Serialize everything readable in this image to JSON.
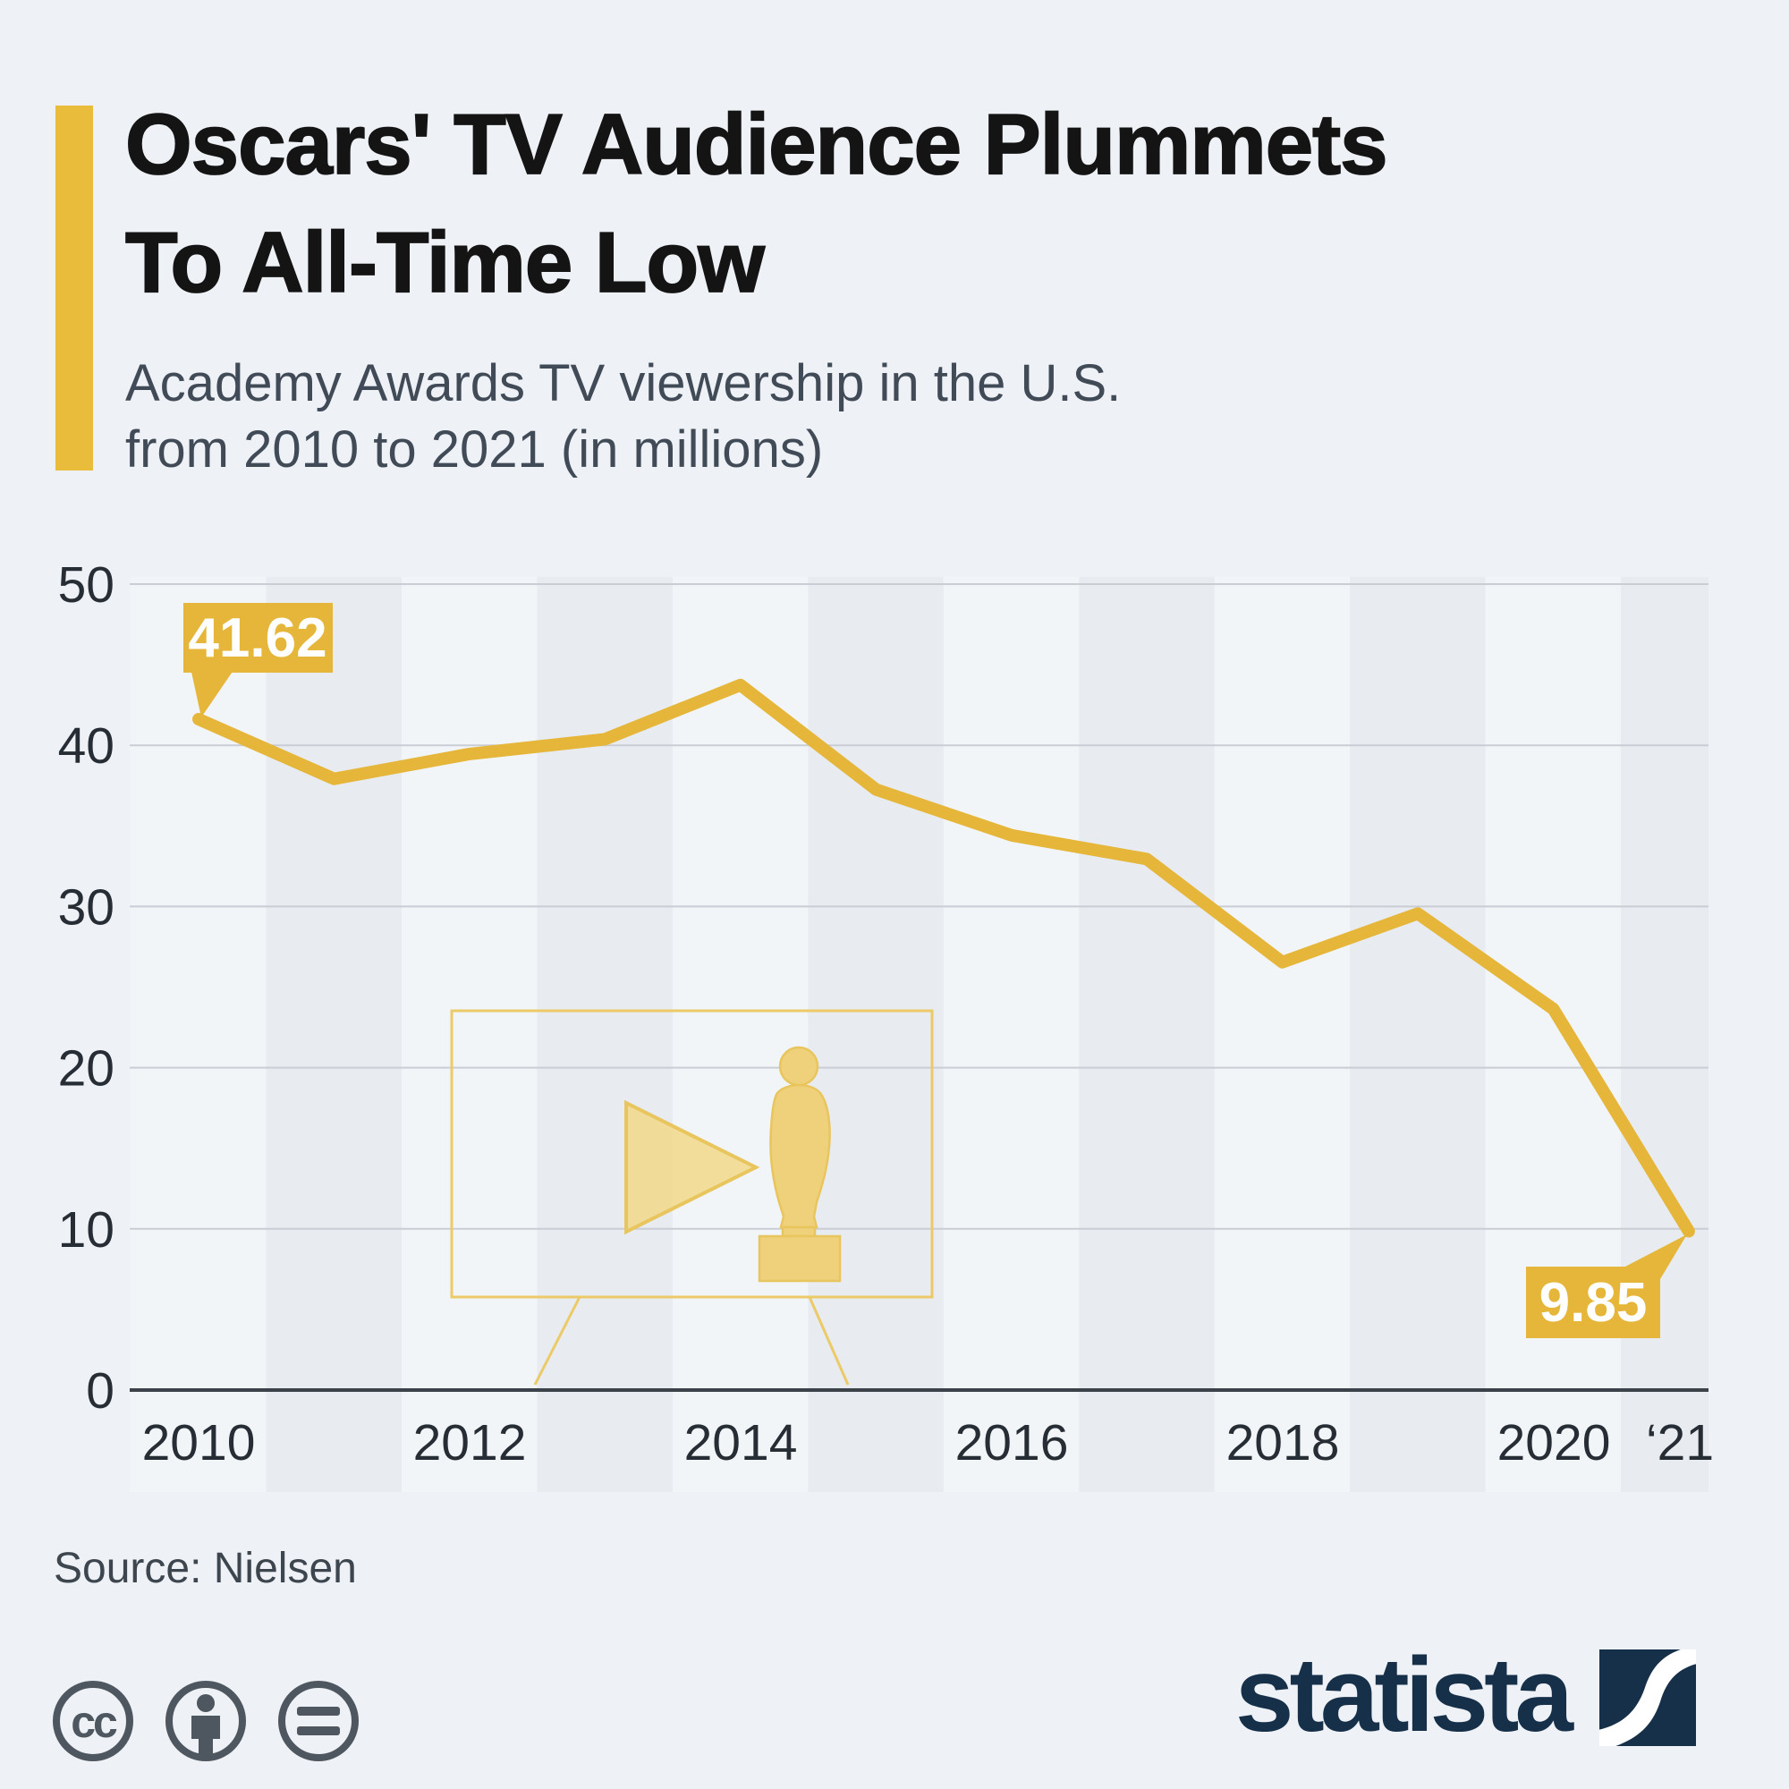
{
  "header": {
    "title_line1": "Oscars' TV Audience Plummets",
    "title_line2": "To All-Time Low",
    "subtitle_line1": "Academy Awards TV viewership in the U.S.",
    "subtitle_line2": "from 2010 to 2021 (in millions)"
  },
  "chart_data": {
    "type": "line",
    "title": "Academy Awards TV viewership in the U.S. from 2010 to 2021 (in millions)",
    "categories": [
      "2010",
      "2011",
      "2012",
      "2013",
      "2014",
      "2015",
      "2016",
      "2017",
      "2018",
      "2019",
      "2020",
      "2021"
    ],
    "values": [
      41.62,
      37.92,
      39.46,
      40.38,
      43.74,
      37.26,
      34.42,
      32.94,
      26.54,
      29.56,
      23.64,
      9.85
    ],
    "series_name": "Academy Awards TV viewership (millions)",
    "xlabel": "",
    "ylabel": "",
    "ylim": [
      0,
      50
    ],
    "grid": true,
    "legend_position": "none",
    "y_ticks": [
      "50",
      "40",
      "30",
      "20",
      "10",
      "0"
    ],
    "x_tick_labels": [
      "2010",
      "2012",
      "2014",
      "2016",
      "2018",
      "2020",
      "‘21"
    ],
    "annotations": [
      {
        "x": "2010",
        "value": 41.62,
        "label": "41.62"
      },
      {
        "x": "2021",
        "value": 9.85,
        "label": "9.85"
      }
    ],
    "line_color": "#e5b63a"
  },
  "footer": {
    "source": "Source: Nielsen",
    "license_icons": [
      "cc-icon",
      "attribution-person-icon",
      "equal-no-derivatives-icon"
    ],
    "brand": "statista"
  },
  "colors": {
    "background": "#eef1f5",
    "stripe": "#e8ecf1",
    "accent_yellow": "#e9bc3c",
    "brand_navy": "#16304a",
    "grid_gray": "#c9cdd4",
    "axis_dark": "#3c4249"
  }
}
